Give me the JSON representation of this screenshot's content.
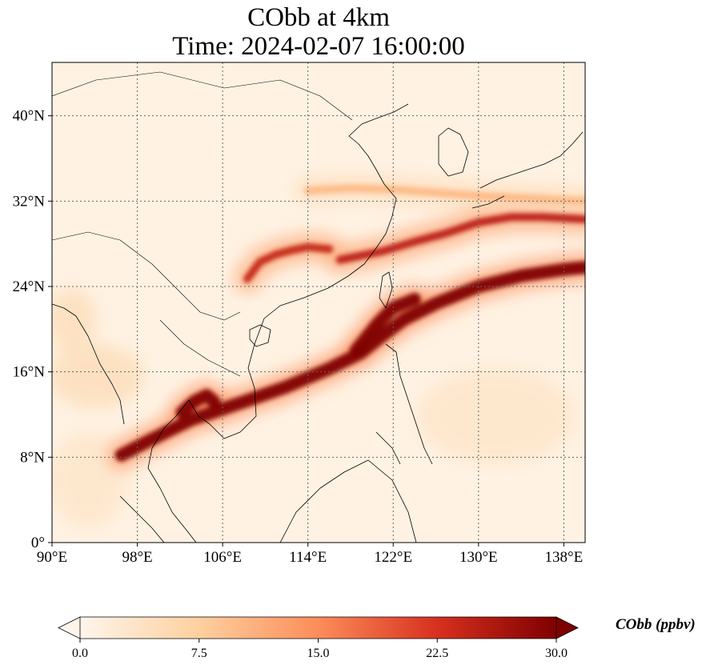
{
  "title": {
    "line1": "CObb at 4km",
    "line2": "Time: 2024-02-07 16:00:00"
  },
  "map": {
    "extent": {
      "lon": [
        90,
        140
      ],
      "lat": [
        0,
        45
      ]
    },
    "lon_ticks": [
      {
        "value": 90,
        "label": "90°E"
      },
      {
        "value": 98,
        "label": "98°E"
      },
      {
        "value": 106,
        "label": "106°E"
      },
      {
        "value": 114,
        "label": "114°E"
      },
      {
        "value": 122,
        "label": "122°E"
      },
      {
        "value": 130,
        "label": "130°E"
      },
      {
        "value": 138,
        "label": "138°E"
      }
    ],
    "lat_ticks": [
      {
        "value": 0,
        "label": "0°"
      },
      {
        "value": 8,
        "label": "8°N"
      },
      {
        "value": 16,
        "label": "16°N"
      },
      {
        "value": 24,
        "label": "24°N"
      },
      {
        "value": 32,
        "label": "32°N"
      },
      {
        "value": 40,
        "label": "40°N"
      }
    ],
    "gridlines": true,
    "gridline_style": "dotted",
    "background_color": "#fff2e3",
    "plumes": [
      {
        "name": "indochina-taiwan-band",
        "level": 30,
        "path": [
          [
            96.5,
            8.2
          ],
          [
            99,
            9.5
          ],
          [
            103,
            11.5
          ],
          [
            108,
            13.2
          ],
          [
            112,
            14.6
          ],
          [
            116,
            16.3
          ],
          [
            119,
            17.8
          ],
          [
            121,
            19.4
          ],
          [
            123,
            20.9
          ],
          [
            126,
            22.4
          ],
          [
            130,
            24
          ],
          [
            134,
            25
          ],
          [
            138,
            25.6
          ],
          [
            140,
            25.8
          ]
        ]
      },
      {
        "name": "east-china-sea-band",
        "level": 25,
        "path": [
          [
            117,
            26.5
          ],
          [
            121,
            27.3
          ],
          [
            124,
            28.2
          ],
          [
            127,
            29
          ],
          [
            130,
            30
          ],
          [
            133,
            30.5
          ],
          [
            136,
            30.5
          ],
          [
            140,
            30.3
          ]
        ]
      },
      {
        "name": "southeast-china-arc",
        "level": 24,
        "path": [
          [
            108.3,
            24.7
          ],
          [
            109.5,
            26.3
          ],
          [
            111,
            27
          ],
          [
            112.5,
            27.4
          ],
          [
            114,
            27.7
          ],
          [
            116,
            27.5
          ]
        ]
      },
      {
        "name": "yangtze-faint",
        "level": 10,
        "path": [
          [
            114,
            33
          ],
          [
            118,
            33.2
          ],
          [
            122,
            33.1
          ],
          [
            126,
            32.8
          ],
          [
            130,
            32.5
          ],
          [
            136,
            32.2
          ],
          [
            140,
            32
          ]
        ]
      },
      {
        "name": "cambodia-cluster",
        "level": 30,
        "path": [
          [
            102.2,
            12.2
          ],
          [
            103.3,
            13.2
          ],
          [
            104.5,
            13.8
          ],
          [
            105.2,
            13.2
          ]
        ]
      },
      {
        "name": "taiwan-core",
        "level": 30,
        "path": [
          [
            118.5,
            18
          ],
          [
            120.5,
            20.5
          ],
          [
            122,
            22
          ],
          [
            124,
            22.8
          ]
        ]
      }
    ],
    "colormap": [
      "#fff5eb",
      "#fdd09f",
      "#fc8d59",
      "#d7301f",
      "#7f0000"
    ]
  },
  "colorbar": {
    "label": "CObb (ppbv)",
    "min": 0,
    "max": 30,
    "ticks": [
      "0.0",
      "7.5",
      "15.0",
      "22.5",
      "30.0"
    ]
  }
}
